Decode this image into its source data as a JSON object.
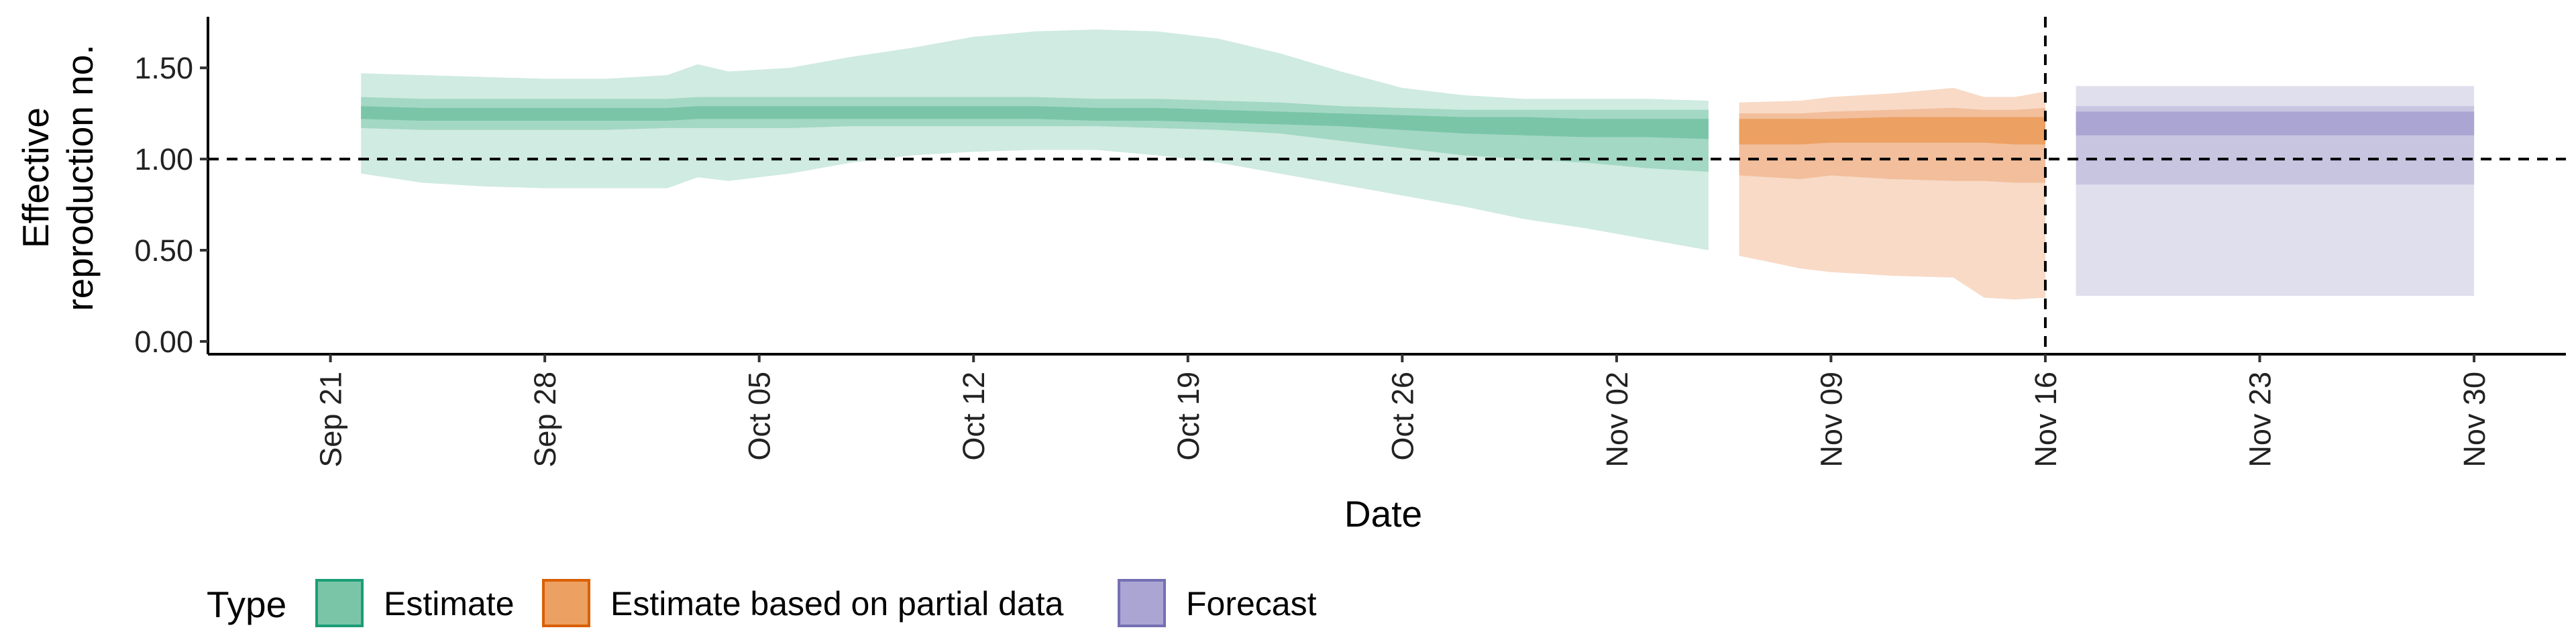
{
  "chart_data": {
    "type": "area",
    "title": "",
    "xlabel": "Date",
    "ylabel_lines": [
      "Effective",
      "reproduction no."
    ],
    "xlim": [
      "2020-09-17",
      "2020-12-03"
    ],
    "ylim": [
      -0.07,
      1.78
    ],
    "y_ticks": [
      0,
      0.5,
      1,
      1.5
    ],
    "y_tick_labels": [
      "0.00",
      "0.50",
      "1.00",
      "1.50"
    ],
    "x_ticks": [
      "2020-09-21",
      "2020-09-28",
      "2020-10-05",
      "2020-10-12",
      "2020-10-19",
      "2020-10-26",
      "2020-11-02",
      "2020-11-09",
      "2020-11-16",
      "2020-11-23",
      "2020-11-30"
    ],
    "x_tick_labels": [
      "Sep 21",
      "Sep 28",
      "Oct 05",
      "Oct 12",
      "Oct 19",
      "Oct 26",
      "Nov 02",
      "Nov 09",
      "Nov 16",
      "Nov 23",
      "Nov 30"
    ],
    "reference_hline": 1.0,
    "reference_vline": "2020-11-16",
    "grid": false,
    "legend": {
      "title": "Type",
      "placement": "bottom-left",
      "entries": [
        {
          "label": "Estimate",
          "fill": "#7ac5a8",
          "stroke": "#1b9e77"
        },
        {
          "label": "Estimate based on partial data",
          "fill": "#eca061",
          "stroke": "#d95f02"
        },
        {
          "label": "Forecast",
          "fill": "#aaa5d3",
          "stroke": "#7570b3"
        }
      ]
    },
    "series": [
      {
        "name": "Estimate",
        "colors": {
          "outer": "#d0ebe1",
          "mid": "#a3d8c4",
          "inner": "#7ac5a8"
        },
        "x": [
          "2020-09-22",
          "2020-09-24",
          "2020-09-26",
          "2020-09-28",
          "2020-09-30",
          "2020-10-02",
          "2020-10-03",
          "2020-10-04",
          "2020-10-06",
          "2020-10-08",
          "2020-10-10",
          "2020-10-12",
          "2020-10-14",
          "2020-10-16",
          "2020-10-18",
          "2020-10-20",
          "2020-10-22",
          "2020-10-24",
          "2020-10-26",
          "2020-10-28",
          "2020-10-30",
          "2020-11-01",
          "2020-11-03",
          "2020-11-05"
        ],
        "outer_lo": [
          0.92,
          0.87,
          0.85,
          0.84,
          0.84,
          0.84,
          0.9,
          0.88,
          0.92,
          0.98,
          1.02,
          1.04,
          1.05,
          1.05,
          1.02,
          0.98,
          0.92,
          0.86,
          0.8,
          0.74,
          0.67,
          0.62,
          0.56,
          0.5
        ],
        "outer_hi": [
          1.47,
          1.46,
          1.45,
          1.44,
          1.44,
          1.46,
          1.52,
          1.48,
          1.5,
          1.56,
          1.61,
          1.67,
          1.7,
          1.71,
          1.7,
          1.66,
          1.58,
          1.48,
          1.39,
          1.35,
          1.33,
          1.33,
          1.33,
          1.32
        ],
        "mid_lo": [
          1.17,
          1.16,
          1.16,
          1.16,
          1.16,
          1.17,
          1.17,
          1.17,
          1.17,
          1.18,
          1.18,
          1.18,
          1.18,
          1.18,
          1.17,
          1.16,
          1.14,
          1.1,
          1.06,
          1.02,
          1.0,
          0.98,
          0.95,
          0.93
        ],
        "mid_hi": [
          1.34,
          1.33,
          1.33,
          1.33,
          1.33,
          1.33,
          1.34,
          1.34,
          1.34,
          1.34,
          1.34,
          1.34,
          1.34,
          1.33,
          1.33,
          1.32,
          1.31,
          1.29,
          1.28,
          1.27,
          1.27,
          1.27,
          1.27,
          1.27
        ],
        "inner_lo": [
          1.22,
          1.21,
          1.21,
          1.21,
          1.21,
          1.21,
          1.22,
          1.22,
          1.22,
          1.22,
          1.22,
          1.22,
          1.22,
          1.21,
          1.21,
          1.2,
          1.19,
          1.18,
          1.16,
          1.14,
          1.13,
          1.12,
          1.12,
          1.11
        ],
        "inner_hi": [
          1.29,
          1.28,
          1.28,
          1.28,
          1.28,
          1.28,
          1.29,
          1.29,
          1.29,
          1.29,
          1.29,
          1.29,
          1.29,
          1.28,
          1.28,
          1.27,
          1.26,
          1.25,
          1.24,
          1.23,
          1.23,
          1.22,
          1.22,
          1.22
        ]
      },
      {
        "name": "Estimate based on partial data",
        "colors": {
          "outer": "#f8dac7",
          "mid": "#f2be9b",
          "inner": "#eca061"
        },
        "x": [
          "2020-11-06",
          "2020-11-08",
          "2020-11-09",
          "2020-11-11",
          "2020-11-13",
          "2020-11-14",
          "2020-11-15",
          "2020-11-16"
        ],
        "outer_lo": [
          0.47,
          0.4,
          0.38,
          0.36,
          0.35,
          0.24,
          0.23,
          0.24
        ],
        "outer_hi": [
          1.31,
          1.32,
          1.34,
          1.36,
          1.39,
          1.34,
          1.34,
          1.37
        ],
        "mid_lo": [
          0.91,
          0.89,
          0.91,
          0.89,
          0.88,
          0.88,
          0.87,
          0.87
        ],
        "mid_hi": [
          1.25,
          1.25,
          1.26,
          1.27,
          1.28,
          1.27,
          1.27,
          1.28
        ],
        "inner_lo": [
          1.08,
          1.08,
          1.09,
          1.09,
          1.09,
          1.09,
          1.08,
          1.08
        ],
        "inner_hi": [
          1.22,
          1.22,
          1.22,
          1.23,
          1.23,
          1.23,
          1.23,
          1.23
        ]
      },
      {
        "name": "Forecast",
        "colors": {
          "outer": "#e0dfee",
          "mid": "#c8c5e1",
          "inner": "#aaa5d3"
        },
        "x": [
          "2020-11-17",
          "2020-11-30"
        ],
        "outer_lo": [
          0.25,
          0.25
        ],
        "outer_hi": [
          1.4,
          1.4
        ],
        "mid_lo": [
          0.86,
          0.86
        ],
        "mid_hi": [
          1.29,
          1.29
        ],
        "inner_lo": [
          1.13,
          1.13
        ],
        "inner_hi": [
          1.26,
          1.26
        ]
      }
    ]
  }
}
